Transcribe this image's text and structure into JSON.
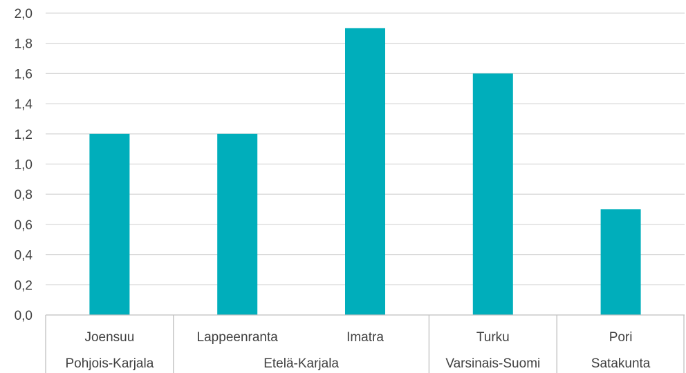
{
  "chart_data": {
    "type": "bar",
    "categories": [
      "Joensuu",
      "Lappeenranta",
      "Imatra",
      "Turku",
      "Pori"
    ],
    "groups": [
      {
        "label": "Pohjois-Karjala",
        "members": [
          "Joensuu"
        ]
      },
      {
        "label": "Etelä-Karjala",
        "members": [
          "Lappeenranta",
          "Imatra"
        ]
      },
      {
        "label": "Varsinais-Suomi",
        "members": [
          "Turku"
        ]
      },
      {
        "label": "Satakunta",
        "members": [
          "Pori"
        ]
      }
    ],
    "values": [
      1.2,
      1.2,
      1.9,
      1.6,
      0.7
    ],
    "ylim": [
      0,
      2.0
    ],
    "yticks": [
      "0,0",
      "0,2",
      "0,4",
      "0,6",
      "0,8",
      "1,0",
      "1,2",
      "1,4",
      "1,6",
      "1,8",
      "2,0"
    ],
    "grid": true,
    "colors": {
      "bar": "#00AEBB",
      "grid": "#D9D9D9",
      "axis": "#BFBFBF",
      "text": "#404040"
    }
  }
}
